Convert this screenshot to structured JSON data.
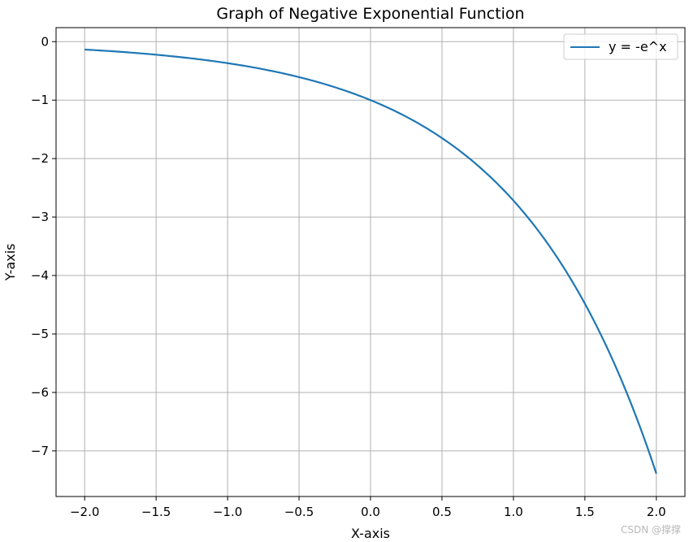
{
  "chart_data": {
    "type": "line",
    "title": "Graph of Negative Exponential Function",
    "xlabel": "X-axis",
    "ylabel": "Y-axis",
    "xlim": [
      -2.2,
      2.2
    ],
    "ylim": [
      -7.78,
      0.24
    ],
    "xticks": [
      -2.0,
      -1.5,
      -1.0,
      -0.5,
      0.0,
      0.5,
      1.0,
      1.5,
      2.0
    ],
    "xtick_labels": [
      "−2.0",
      "−1.5",
      "−1.0",
      "−0.5",
      "0.0",
      "0.5",
      "1.0",
      "1.5",
      "2.0"
    ],
    "yticks": [
      0,
      -1,
      -2,
      -3,
      -4,
      -5,
      -6,
      -7
    ],
    "ytick_labels": [
      "0",
      "−1",
      "−2",
      "−3",
      "−4",
      "−5",
      "−6",
      "−7"
    ],
    "grid": true,
    "legend_position": "top-right",
    "series": [
      {
        "name": "y = -e^x",
        "color": "#1f77b4",
        "x": [
          -2.0,
          -1.8,
          -1.6,
          -1.4,
          -1.2,
          -1.0,
          -0.8,
          -0.6,
          -0.4,
          -0.2,
          0.0,
          0.2,
          0.4,
          0.6,
          0.8,
          1.0,
          1.2,
          1.4,
          1.6,
          1.8,
          2.0
        ],
        "y": [
          -0.135,
          -0.165,
          -0.202,
          -0.247,
          -0.301,
          -0.368,
          -0.449,
          -0.549,
          -0.67,
          -0.819,
          -1.0,
          -1.221,
          -1.492,
          -1.822,
          -2.226,
          -2.718,
          -3.32,
          -4.055,
          -4.953,
          -6.05,
          -7.389
        ]
      }
    ]
  },
  "watermark": "CSDN @撑撑"
}
